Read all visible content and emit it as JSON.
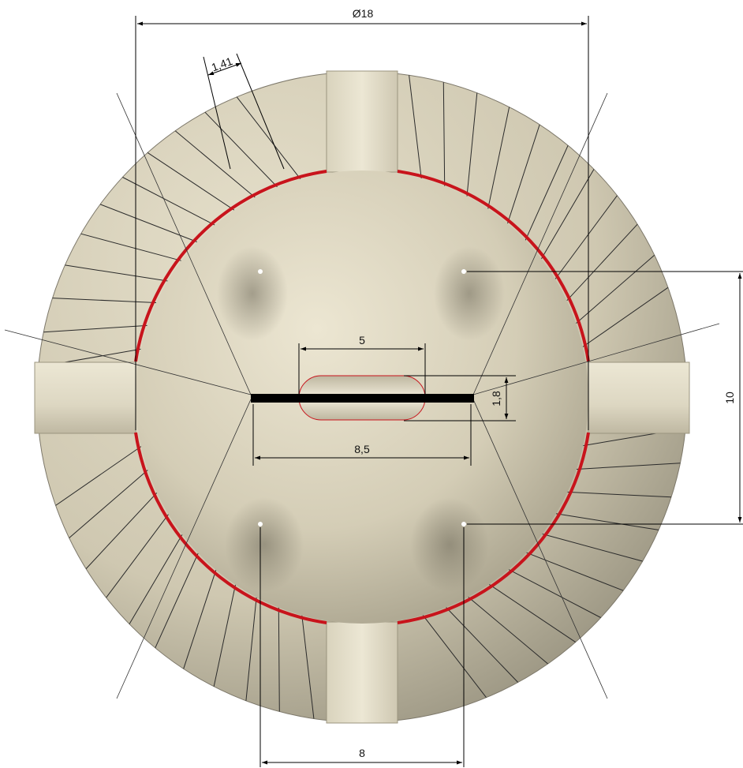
{
  "dimensions": {
    "outer_diameter": "Ø18",
    "rib_width": "1,41",
    "slot_length": "5",
    "slot_width": "1,8",
    "bar_length": "8,5",
    "hole_spacing_vertical": "10",
    "hole_spacing_horizontal": "8"
  },
  "colors": {
    "body": "#d8d2bd",
    "body_dark": "#8f8a77",
    "seal_ring": "#c8141c",
    "bar": "#000000",
    "dim_line": "#000000"
  }
}
